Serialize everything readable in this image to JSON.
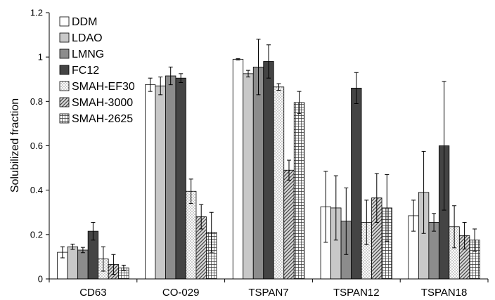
{
  "chart_data": {
    "type": "bar",
    "title": "",
    "xlabel": "",
    "ylabel": "Solubilized fraction",
    "ylim": [
      0,
      1.2
    ],
    "yticks": [
      "0",
      "0.2",
      "0.4",
      "0.6",
      "0.8",
      "1",
      "1.2"
    ],
    "categories": [
      "CD63",
      "CO-029",
      "TSPAN7",
      "TSPAN12",
      "TSPAN18"
    ],
    "legend_position": "top-left",
    "grid": false,
    "series": [
      {
        "name": "DDM",
        "pattern": "white",
        "values": [
          0.12,
          0.875,
          0.99,
          0.325,
          0.285
        ],
        "errors": [
          0.025,
          0.03,
          0.003,
          0.16,
          0.07
        ]
      },
      {
        "name": "LDAO",
        "pattern": "light-gray",
        "values": [
          0.145,
          0.87,
          0.925,
          0.32,
          0.39
        ],
        "errors": [
          0.012,
          0.04,
          0.015,
          0.145,
          0.185
        ]
      },
      {
        "name": "LMNG",
        "pattern": "mid-gray",
        "values": [
          0.13,
          0.915,
          0.955,
          0.26,
          0.255
        ],
        "errors": [
          0.012,
          0.04,
          0.125,
          0.15,
          0.04
        ]
      },
      {
        "name": "FC12",
        "pattern": "dark-gray",
        "values": [
          0.215,
          0.905,
          0.98,
          0.86,
          0.6
        ],
        "errors": [
          0.04,
          0.02,
          0.075,
          0.07,
          0.29
        ]
      },
      {
        "name": "SMAH-EF30",
        "pattern": "dots",
        "values": [
          0.09,
          0.395,
          0.865,
          0.255,
          0.235
        ],
        "errors": [
          0.055,
          0.055,
          0.015,
          0.1,
          0.095
        ]
      },
      {
        "name": "SMAH-3000",
        "pattern": "diagonal",
        "values": [
          0.065,
          0.28,
          0.49,
          0.365,
          0.195
        ],
        "errors": [
          0.045,
          0.055,
          0.045,
          0.11,
          0.06
        ]
      },
      {
        "name": "SMAH-2625",
        "pattern": "grid",
        "values": [
          0.05,
          0.21,
          0.795,
          0.32,
          0.175
        ],
        "errors": [
          0.012,
          0.09,
          0.05,
          0.15,
          0.05
        ]
      }
    ]
  }
}
